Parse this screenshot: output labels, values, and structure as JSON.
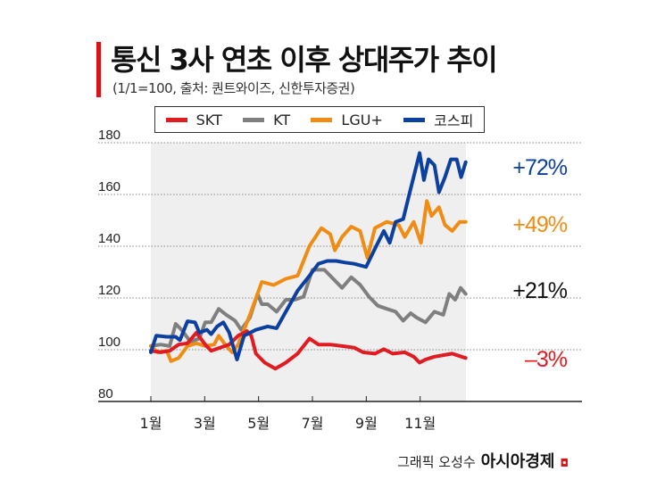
{
  "chart_data": {
    "type": "line",
    "title": "통신 3사 연초 이후 상대주가 추이",
    "subtitle": "(1/1=100, 출처: 퀀트와이즈, 신한투자증권)",
    "xlabel": "",
    "ylabel": "",
    "x_unit": "month",
    "xlim": [
      1,
      12.7
    ],
    "ylim": [
      80,
      180
    ],
    "yticks": [
      80,
      100,
      120,
      140,
      160,
      180
    ],
    "xticks": [
      1,
      3,
      5,
      7,
      9,
      11
    ],
    "xtick_labels": [
      "1월",
      "3월",
      "5월",
      "7월",
      "9월",
      "11월"
    ],
    "grid": "horizontal dotted",
    "legend_position": "top",
    "series": [
      {
        "name": "KT",
        "color": "#7f7f7f",
        "end_label": "+21%",
        "end_label_color": "#111111",
        "points": [
          [
            1.0,
            101.4
          ],
          [
            1.36,
            102
          ],
          [
            1.7,
            101.4
          ],
          [
            1.92,
            110
          ],
          [
            2.14,
            107.7
          ],
          [
            2.47,
            103.1
          ],
          [
            2.8,
            104.3
          ],
          [
            3.02,
            110.6
          ],
          [
            3.24,
            110.6
          ],
          [
            3.52,
            115.8
          ],
          [
            3.8,
            113.5
          ],
          [
            4.13,
            111.2
          ],
          [
            4.35,
            107.7
          ],
          [
            4.68,
            112.4
          ],
          [
            4.96,
            121.6
          ],
          [
            5.12,
            117.6
          ],
          [
            5.34,
            117.6
          ],
          [
            5.67,
            114.7
          ],
          [
            6.01,
            119.3
          ],
          [
            6.34,
            119.3
          ],
          [
            6.67,
            120.5
          ],
          [
            7.0,
            130.9
          ],
          [
            7.44,
            130.9
          ],
          [
            7.77,
            127.4
          ],
          [
            8.1,
            123.9
          ],
          [
            8.44,
            128
          ],
          [
            8.77,
            125.1
          ],
          [
            9.1,
            120.5
          ],
          [
            9.43,
            117
          ],
          [
            9.76,
            115.8
          ],
          [
            10.09,
            114.7
          ],
          [
            10.37,
            111.2
          ],
          [
            10.65,
            114.1
          ],
          [
            10.87,
            112.4
          ],
          [
            11.2,
            110.6
          ],
          [
            11.53,
            114.7
          ],
          [
            11.86,
            113.5
          ],
          [
            12.08,
            121.6
          ],
          [
            12.3,
            119.3
          ],
          [
            12.5,
            123.9
          ],
          [
            12.69,
            121.6
          ]
        ]
      },
      {
        "name": "LGU+",
        "color": "#f08c14",
        "end_label": "+49%",
        "end_label_color": "#f08c14",
        "points": [
          [
            1.0,
            101.4
          ],
          [
            1.25,
            99
          ],
          [
            1.59,
            99.6
          ],
          [
            1.75,
            95.6
          ],
          [
            2.03,
            96.8
          ],
          [
            2.36,
            101.4
          ],
          [
            2.69,
            102.5
          ],
          [
            3.02,
            101.4
          ],
          [
            3.35,
            102
          ],
          [
            3.52,
            105.4
          ],
          [
            3.8,
            101.4
          ],
          [
            4.02,
            99
          ],
          [
            4.24,
            102
          ],
          [
            4.68,
            113.5
          ],
          [
            5.12,
            126.2
          ],
          [
            5.56,
            125
          ],
          [
            6.01,
            127.4
          ],
          [
            6.45,
            128.6
          ],
          [
            6.89,
            140.1
          ],
          [
            7.33,
            147
          ],
          [
            7.66,
            144.7
          ],
          [
            7.83,
            138.4
          ],
          [
            8.1,
            143.6
          ],
          [
            8.44,
            147.6
          ],
          [
            8.77,
            145.9
          ],
          [
            9.04,
            135.5
          ],
          [
            9.32,
            147
          ],
          [
            9.76,
            149.4
          ],
          [
            10.2,
            148.2
          ],
          [
            10.43,
            143.6
          ],
          [
            10.76,
            149.4
          ],
          [
            11.03,
            141.3
          ],
          [
            11.25,
            157.5
          ],
          [
            11.42,
            151.7
          ],
          [
            11.7,
            155.1
          ],
          [
            11.92,
            148.2
          ],
          [
            12.19,
            145.9
          ],
          [
            12.47,
            149.4
          ],
          [
            12.69,
            149.4
          ]
        ]
      },
      {
        "name": "SKT",
        "color": "#e01b22",
        "end_label": "–3%",
        "end_label_color": "#e01b22",
        "points": [
          [
            1.0,
            99.6
          ],
          [
            1.36,
            99
          ],
          [
            1.7,
            99.6
          ],
          [
            2.03,
            102
          ],
          [
            2.36,
            102.5
          ],
          [
            2.69,
            106.6
          ],
          [
            3.02,
            102
          ],
          [
            3.24,
            99.6
          ],
          [
            3.57,
            100.8
          ],
          [
            3.91,
            102
          ],
          [
            4.24,
            105.4
          ],
          [
            4.57,
            107.2
          ],
          [
            4.73,
            105.4
          ],
          [
            4.9,
            98.5
          ],
          [
            5.23,
            95
          ],
          [
            5.62,
            92.7
          ],
          [
            6.01,
            95
          ],
          [
            6.45,
            98.5
          ],
          [
            6.89,
            104.3
          ],
          [
            7.22,
            102
          ],
          [
            7.66,
            102
          ],
          [
            8.1,
            101.4
          ],
          [
            8.55,
            100.8
          ],
          [
            8.88,
            99
          ],
          [
            9.32,
            98.5
          ],
          [
            9.65,
            100.2
          ],
          [
            9.98,
            98.5
          ],
          [
            10.43,
            99
          ],
          [
            10.76,
            97.3
          ],
          [
            10.98,
            95
          ],
          [
            11.2,
            96.2
          ],
          [
            11.53,
            97.3
          ],
          [
            11.86,
            97.9
          ],
          [
            12.19,
            98.5
          ],
          [
            12.69,
            96.8
          ]
        ]
      },
      {
        "name": "코스피",
        "color": "#0b3fa0",
        "end_label": "+72%",
        "end_label_color": "#0b3fa0",
        "points": [
          [
            1.0,
            99
          ],
          [
            1.2,
            105.4
          ],
          [
            1.59,
            105
          ],
          [
            1.92,
            105
          ],
          [
            2.08,
            103.7
          ],
          [
            2.36,
            111
          ],
          [
            2.64,
            110.6
          ],
          [
            2.8,
            106.6
          ],
          [
            3.08,
            107.7
          ],
          [
            3.24,
            106
          ],
          [
            3.46,
            109
          ],
          [
            3.69,
            110.6
          ],
          [
            3.91,
            106.6
          ],
          [
            4.2,
            96.2
          ],
          [
            4.46,
            105.4
          ],
          [
            4.9,
            107.7
          ],
          [
            5.34,
            109
          ],
          [
            5.67,
            108.3
          ],
          [
            6.01,
            114.7
          ],
          [
            6.45,
            122.8
          ],
          [
            6.89,
            128.6
          ],
          [
            7.22,
            133.2
          ],
          [
            7.55,
            134.3
          ],
          [
            7.88,
            134.3
          ],
          [
            8.22,
            133.7
          ],
          [
            8.55,
            133.2
          ],
          [
            8.99,
            132
          ],
          [
            9.32,
            139
          ],
          [
            9.65,
            145.9
          ],
          [
            9.87,
            141.3
          ],
          [
            10.09,
            149.4
          ],
          [
            10.37,
            150.5
          ],
          [
            10.59,
            159.8
          ],
          [
            10.98,
            176
          ],
          [
            11.14,
            165.6
          ],
          [
            11.31,
            173.6
          ],
          [
            11.53,
            171.3
          ],
          [
            11.7,
            160.9
          ],
          [
            11.92,
            166.7
          ],
          [
            12.14,
            173.6
          ],
          [
            12.36,
            173.6
          ],
          [
            12.52,
            166.7
          ],
          [
            12.69,
            172.5
          ]
        ]
      }
    ]
  },
  "legend": {
    "items": [
      {
        "label": "SKT",
        "color": "#e01b22"
      },
      {
        "label": "KT",
        "color": "#7f7f7f"
      },
      {
        "label": "LGU+",
        "color": "#f08c14"
      },
      {
        "label": "코스피",
        "color": "#0b3fa0"
      }
    ]
  },
  "credit": {
    "text": "그래픽 오성수",
    "brand": "아시아경제"
  }
}
